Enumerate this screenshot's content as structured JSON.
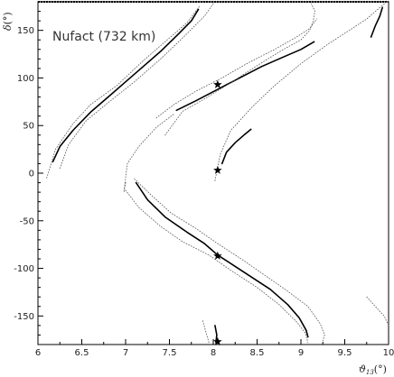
{
  "chart_data": {
    "type": "line",
    "title": "",
    "annotation": "Nufact (732 km)",
    "xlabel": "ϑ13(°)",
    "xlabel_main": "ϑ",
    "xlabel_sub": "13",
    "xlabel_unit": "(°)",
    "ylabel": "δ(°)",
    "ylabel_main": "δ",
    "ylabel_unit": "(°)",
    "xlim": [
      6,
      10
    ],
    "ylim": [
      -180,
      180
    ],
    "xticks": [
      "6",
      "6.5",
      "7",
      "7.5",
      "8",
      "8.5",
      "9",
      "9.5",
      "10"
    ],
    "yticks": [
      "150",
      "100",
      "50",
      "0",
      "-50",
      "-100",
      "-150"
    ],
    "xtick_values": [
      6,
      6.5,
      7,
      7.5,
      8,
      8.5,
      9,
      9.5,
      10
    ],
    "ytick_values": [
      150,
      100,
      50,
      0,
      -50,
      -100,
      -150
    ],
    "grid": false,
    "legend": "none",
    "series": [
      {
        "style": "solid",
        "curves": [
          [
            [
              6.17,
              12
            ],
            [
              6.25,
              28
            ],
            [
              6.4,
              45
            ],
            [
              6.6,
              64
            ],
            [
              6.8,
              80
            ],
            [
              7.0,
              96
            ],
            [
              7.2,
              112
            ],
            [
              7.4,
              128
            ],
            [
              7.6,
              146
            ],
            [
              7.75,
              160
            ],
            [
              7.83,
              172
            ]
          ],
          [
            [
              7.58,
              66
            ],
            [
              7.8,
              76
            ],
            [
              8.05,
              88
            ],
            [
              8.3,
              100
            ],
            [
              8.55,
              112
            ],
            [
              8.8,
              122
            ],
            [
              9.0,
              130
            ],
            [
              9.15,
              138
            ]
          ],
          [
            [
              8.1,
              10
            ],
            [
              8.15,
              22
            ],
            [
              8.25,
              32
            ],
            [
              8.35,
              40
            ],
            [
              8.43,
              46
            ]
          ],
          [
            [
              9.8,
              143
            ],
            [
              9.85,
              155
            ],
            [
              9.9,
              165
            ],
            [
              9.93,
              174
            ]
          ],
          [
            [
              7.12,
              -10
            ],
            [
              7.25,
              -28
            ],
            [
              7.45,
              -46
            ],
            [
              7.7,
              -62
            ],
            [
              7.9,
              -74
            ],
            [
              8.05,
              -86
            ],
            [
              8.25,
              -98
            ],
            [
              8.45,
              -110
            ],
            [
              8.65,
              -122
            ],
            [
              8.85,
              -138
            ],
            [
              8.98,
              -152
            ],
            [
              9.06,
              -165
            ],
            [
              9.08,
              -172
            ]
          ],
          [
            [
              8.02,
              -160
            ],
            [
              8.04,
              -170
            ],
            [
              8.03,
              -178
            ]
          ]
        ]
      },
      {
        "style": "dotted",
        "curves": [
          [
            [
              6.1,
              -5
            ],
            [
              6.2,
              25
            ],
            [
              6.4,
              52
            ],
            [
              6.6,
              72
            ],
            [
              6.9,
              92
            ],
            [
              7.2,
              118
            ],
            [
              7.45,
              138
            ],
            [
              7.7,
              158
            ],
            [
              7.85,
              176
            ]
          ],
          [
            [
              6.25,
              5
            ],
            [
              6.35,
              30
            ],
            [
              6.55,
              55
            ],
            [
              6.8,
              74
            ],
            [
              7.1,
              96
            ],
            [
              7.4,
              120
            ],
            [
              7.65,
              142
            ],
            [
              7.9,
              165
            ],
            [
              8.0,
              178
            ]
          ],
          [
            [
              7.45,
              40
            ],
            [
              7.65,
              65
            ],
            [
              7.9,
              78
            ],
            [
              8.2,
              95
            ],
            [
              8.55,
              116
            ],
            [
              8.8,
              130
            ],
            [
              9.0,
              140
            ],
            [
              9.1,
              150
            ],
            [
              9.14,
              160
            ],
            [
              9.16,
              170
            ],
            [
              9.12,
              178
            ]
          ],
          [
            [
              7.35,
              58
            ],
            [
              7.55,
              72
            ],
            [
              7.8,
              86
            ],
            [
              8.1,
              100
            ],
            [
              8.4,
              116
            ],
            [
              8.7,
              130
            ],
            [
              8.95,
              143
            ],
            [
              9.1,
              152
            ],
            [
              9.18,
              162
            ]
          ],
          [
            [
              8.02,
              -8
            ],
            [
              8.08,
              20
            ],
            [
              8.2,
              45
            ],
            [
              8.45,
              70
            ],
            [
              8.7,
              92
            ],
            [
              9.0,
              115
            ],
            [
              9.3,
              135
            ],
            [
              9.55,
              150
            ],
            [
              9.75,
              162
            ],
            [
              9.9,
              174
            ],
            [
              9.98,
              180
            ]
          ],
          [
            [
              7.0,
              -10
            ],
            [
              6.98,
              -20
            ],
            [
              7.02,
              10
            ],
            [
              7.15,
              28
            ],
            [
              7.35,
              48
            ],
            [
              7.55,
              62
            ]
          ],
          [
            [
              7.0,
              -18
            ],
            [
              7.15,
              -36
            ],
            [
              7.4,
              -56
            ],
            [
              7.65,
              -72
            ],
            [
              7.95,
              -86
            ],
            [
              8.2,
              -102
            ],
            [
              8.5,
              -120
            ],
            [
              8.75,
              -138
            ],
            [
              8.95,
              -156
            ],
            [
              9.05,
              -168
            ],
            [
              9.08,
              -178
            ]
          ],
          [
            [
              7.1,
              -6
            ],
            [
              7.28,
              -22
            ],
            [
              7.52,
              -42
            ],
            [
              7.8,
              -58
            ],
            [
              8.05,
              -74
            ],
            [
              8.35,
              -92
            ],
            [
              8.6,
              -108
            ],
            [
              8.85,
              -124
            ],
            [
              9.08,
              -140
            ],
            [
              9.22,
              -158
            ],
            [
              9.27,
              -170
            ],
            [
              9.25,
              -176
            ]
          ],
          [
            [
              7.88,
              -155
            ],
            [
              7.92,
              -168
            ],
            [
              7.95,
              -178
            ]
          ],
          [
            [
              9.75,
              -130
            ],
            [
              9.85,
              -140
            ],
            [
              9.95,
              -150
            ],
            [
              10.0,
              -160
            ]
          ]
        ]
      }
    ],
    "points": [
      {
        "x": 8.05,
        "y": 93
      },
      {
        "x": 8.05,
        "y": 3
      },
      {
        "x": 8.05,
        "y": -87
      },
      {
        "x": 8.05,
        "y": -177
      }
    ]
  }
}
